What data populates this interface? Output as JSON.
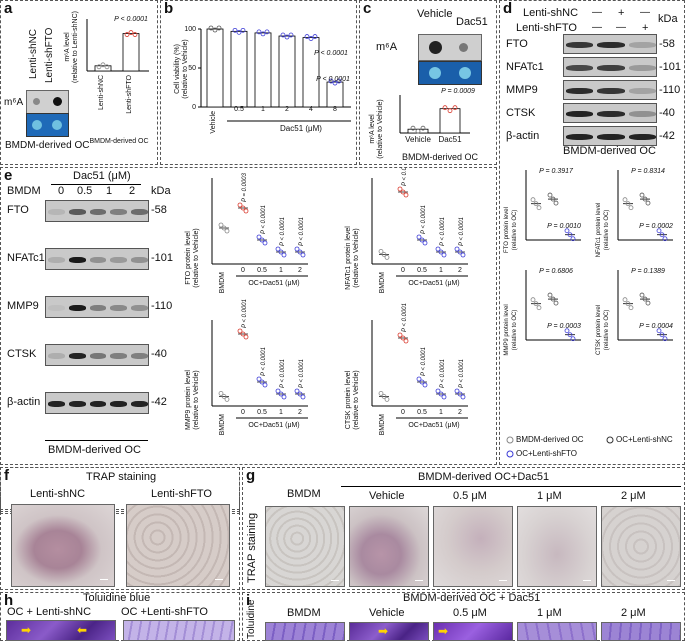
{
  "panel_a": {
    "label": "a",
    "rows": [
      "Lenti-shNC",
      "Lenti-shFTO"
    ],
    "m6a": "m⁶A",
    "footer": "BMDM-derived OC",
    "ylabel": "m⁶A level\n(relative to Lenti-shNC)",
    "p": "P < 0.0001",
    "cats": [
      "Lenti-shNC",
      "Lenti-shFTO"
    ],
    "subtitle": "BMDM-derived OC"
  },
  "panel_b": {
    "label": "b",
    "ylabel": "Cell viability (%)\n(relative to Vehicle)",
    "xlabel": "Dac51 (μM)",
    "cats": [
      "Vehicle",
      "0.5",
      "1",
      "2",
      "4",
      "8"
    ],
    "p1": "P < 0.0001",
    "p2": "P < 0.0001"
  },
  "panel_c": {
    "label": "c",
    "cols": [
      "Vehicle",
      "Dac51"
    ],
    "m6a": "m⁶A",
    "ylabel": "m⁶A level\n(relative to Vehicle)",
    "p": "P = 0.0009",
    "cats": [
      "Vehicle",
      "Dac51"
    ],
    "footer": "BMDM-derived OC"
  },
  "panel_d": {
    "label": "d",
    "row1": "Lenti-shNC",
    "row2": "Lenti-shFTO",
    "signs1": [
      "—",
      "+",
      "—"
    ],
    "signs2": [
      "—",
      "—",
      "+"
    ],
    "kda": "kDa",
    "proteins": [
      "FTO",
      "NFATc1",
      "MMP9",
      "CTSK",
      "β-actin"
    ],
    "sizes": [
      "-58",
      "-101",
      "-110",
      "-40",
      "-42"
    ],
    "footer": "BMDM-derived OC",
    "plots": [
      {
        "ylabel": "FTO protein level\n(relative to OC)",
        "p1": "P = 0.3917",
        "p2": "P = 0.0010"
      },
      {
        "ylabel": "NFATc1 protein level\n(relative to OC)",
        "p1": "P = 0.8314",
        "p2": "P = 0.0002"
      },
      {
        "ylabel": "MMP9 protein level\n(relative to OC)",
        "p1": "P = 0.6806",
        "p2": "P = 0.0003"
      },
      {
        "ylabel": "CTSK protein level\n(relative to OC)",
        "p1": "P = 0.1389",
        "p2": "P = 0.0004"
      }
    ],
    "legend": [
      "BMDM-derived  OC",
      "OC+Lenti-shNC",
      "OC+Lenti-shFTO"
    ]
  },
  "panel_e": {
    "label": "e",
    "header": "Dac51 (μM)",
    "cols": [
      "BMDM",
      "0",
      "0.5",
      "1",
      "2"
    ],
    "kda": "kDa",
    "proteins": [
      "FTO",
      "NFATc1",
      "MMP9",
      "CTSK",
      "β-actin"
    ],
    "sizes": [
      "-58",
      "-101",
      "-110",
      "-40",
      "-42"
    ],
    "footer": "BMDM-derived OC",
    "plots": [
      {
        "ylabel": "FTO protein level\n(relative to Vehicle)",
        "ps": [
          "P = 0.0003",
          "P < 0.0001",
          "P < 0.0001",
          "P < 0.0001"
        ]
      },
      {
        "ylabel": "NFATc1 protein level\n(relative to Vehicle)",
        "ps": [
          "P < 0.0001",
          "P < 0.0001",
          "P < 0.0001",
          "P < 0.0001"
        ]
      },
      {
        "ylabel": "MMP9 protein level\n(relative to Vehicle)",
        "ps": [
          "P < 0.0001",
          "P < 0.0001",
          "P < 0.0001",
          "P < 0.0001"
        ]
      },
      {
        "ylabel": "CTSK protein level\n(relative to Vehicle)",
        "ps": [
          "P < 0.0001",
          "P < 0.0001",
          "P < 0.0001",
          "P < 0.0001"
        ]
      }
    ],
    "xcats": [
      "BMDM",
      "0",
      "0.5",
      "1",
      "2"
    ],
    "xlabel": "OC+Dac51 (μM)"
  },
  "panel_f": {
    "label": "f",
    "title": "TRAP staining",
    "cols": [
      "Lenti-shNC",
      "Lenti-shFTO"
    ]
  },
  "panel_g": {
    "label": "g",
    "title": "BMDM-derived OC+Dac51",
    "side": "TRAP staining",
    "cols": [
      "BMDM",
      "Vehicle",
      "0.5 μM",
      "1 μM",
      "2 μM"
    ]
  },
  "panel_h": {
    "label": "h",
    "title": "Toluidine blue",
    "cols": [
      "OC + Lenti-shNC",
      "OC +Lenti-shFTO"
    ]
  },
  "panel_i": {
    "label": "i",
    "title": "BMDM-derived OC + Dac51",
    "side": "Toluidine",
    "cols": [
      "BMDM",
      "Vehicle",
      "0.5 μM",
      "1 μM",
      "2 μM"
    ]
  },
  "chart_data": [
    {
      "type": "bar",
      "panel": "a",
      "categories": [
        "Lenti-shNC",
        "Lenti-shFTO"
      ],
      "values": [
        1.0,
        7.2
      ],
      "ylim": [
        0,
        10
      ]
    },
    {
      "type": "bar",
      "panel": "b",
      "categories": [
        "Vehicle",
        "0.5",
        "1",
        "2",
        "4",
        "8"
      ],
      "values": [
        100,
        97,
        95,
        91,
        89,
        32
      ],
      "ylim": [
        0,
        100
      ]
    },
    {
      "type": "bar",
      "panel": "c",
      "categories": [
        "Vehicle",
        "Dac51"
      ],
      "values": [
        1.0,
        6.4
      ],
      "ylim": [
        0,
        10
      ]
    }
  ]
}
